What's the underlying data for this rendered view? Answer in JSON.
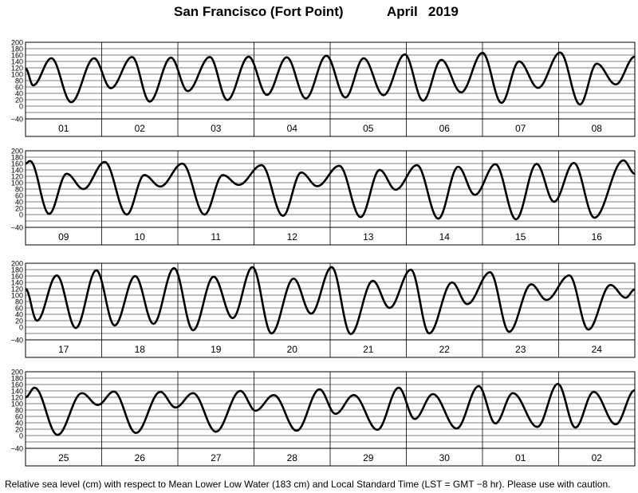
{
  "title": {
    "station": "San Francisco (Fort Point)",
    "month": "April",
    "year": "2019"
  },
  "footnote": "Relative sea level (cm) with respect to Mean Lower Low Water (183 cm) and Local Standard Time (LST = GMT −8 hr). Please use with caution.",
  "chart_data": [
    {
      "type": "line",
      "ylim": [
        -40,
        200
      ],
      "yticks": [
        "200",
        "180",
        "160",
        "140",
        "120",
        "100",
        "80",
        "60",
        "40",
        "20",
        "0",
        "−40"
      ],
      "day_labels": [
        "01",
        "02",
        "03",
        "04",
        "05",
        "06",
        "07",
        "08"
      ],
      "series": [
        {
          "values": [
            {
              "x": 0.0,
              "y": 118
            },
            {
              "x": 0.1,
              "y": 65
            },
            {
              "x": 0.34,
              "y": 150
            },
            {
              "x": 0.6,
              "y": 12
            },
            {
              "x": 0.9,
              "y": 150
            },
            {
              "x": 1.12,
              "y": 56
            },
            {
              "x": 1.4,
              "y": 154
            },
            {
              "x": 1.63,
              "y": 14
            },
            {
              "x": 1.91,
              "y": 152
            },
            {
              "x": 2.13,
              "y": 47
            },
            {
              "x": 2.42,
              "y": 154
            },
            {
              "x": 2.65,
              "y": 19
            },
            {
              "x": 2.93,
              "y": 155
            },
            {
              "x": 3.17,
              "y": 35
            },
            {
              "x": 3.43,
              "y": 153
            },
            {
              "x": 3.68,
              "y": 24
            },
            {
              "x": 3.95,
              "y": 158
            },
            {
              "x": 4.2,
              "y": 27
            },
            {
              "x": 4.44,
              "y": 150
            },
            {
              "x": 4.7,
              "y": 34
            },
            {
              "x": 4.98,
              "y": 162
            },
            {
              "x": 5.22,
              "y": 17
            },
            {
              "x": 5.46,
              "y": 145
            },
            {
              "x": 5.72,
              "y": 43
            },
            {
              "x": 6.0,
              "y": 167
            },
            {
              "x": 6.25,
              "y": 10
            },
            {
              "x": 6.48,
              "y": 140
            },
            {
              "x": 6.73,
              "y": 57
            },
            {
              "x": 7.02,
              "y": 168
            },
            {
              "x": 7.28,
              "y": 5
            },
            {
              "x": 7.5,
              "y": 133
            },
            {
              "x": 7.75,
              "y": 68
            },
            {
              "x": 8.0,
              "y": 155
            }
          ]
        }
      ]
    },
    {
      "type": "line",
      "ylim": [
        -40,
        200
      ],
      "yticks": [
        "200",
        "180",
        "160",
        "140",
        "120",
        "100",
        "80",
        "60",
        "40",
        "20",
        "0",
        "−40"
      ],
      "day_labels": [
        "09",
        "10",
        "11",
        "12",
        "13",
        "14",
        "15",
        "16"
      ],
      "series": [
        {
          "values": [
            {
              "x": 0.0,
              "y": 160
            },
            {
              "x": 0.06,
              "y": 168
            },
            {
              "x": 0.31,
              "y": 2
            },
            {
              "x": 0.54,
              "y": 128
            },
            {
              "x": 0.76,
              "y": 80
            },
            {
              "x": 1.04,
              "y": 165
            },
            {
              "x": 1.33,
              "y": 0
            },
            {
              "x": 1.56,
              "y": 124
            },
            {
              "x": 1.77,
              "y": 88
            },
            {
              "x": 2.06,
              "y": 160
            },
            {
              "x": 2.35,
              "y": 0
            },
            {
              "x": 2.59,
              "y": 124
            },
            {
              "x": 2.8,
              "y": 93
            },
            {
              "x": 3.1,
              "y": 155
            },
            {
              "x": 3.38,
              "y": -4
            },
            {
              "x": 3.62,
              "y": 132
            },
            {
              "x": 3.83,
              "y": 89
            },
            {
              "x": 4.12,
              "y": 153
            },
            {
              "x": 4.4,
              "y": -8
            },
            {
              "x": 4.65,
              "y": 140
            },
            {
              "x": 4.86,
              "y": 78
            },
            {
              "x": 5.14,
              "y": 155
            },
            {
              "x": 5.42,
              "y": -13
            },
            {
              "x": 5.68,
              "y": 150
            },
            {
              "x": 5.9,
              "y": 62
            },
            {
              "x": 6.17,
              "y": 158
            },
            {
              "x": 6.44,
              "y": -15
            },
            {
              "x": 6.71,
              "y": 159
            },
            {
              "x": 6.94,
              "y": 40
            },
            {
              "x": 7.2,
              "y": 162
            },
            {
              "x": 7.47,
              "y": -10
            },
            {
              "x": 7.85,
              "y": 170
            },
            {
              "x": 8.0,
              "y": 128
            }
          ]
        }
      ]
    },
    {
      "type": "line",
      "ylim": [
        -40,
        200
      ],
      "yticks": [
        "200",
        "180",
        "160",
        "140",
        "120",
        "100",
        "80",
        "60",
        "40",
        "20",
        "0",
        "−40"
      ],
      "day_labels": [
        "17",
        "18",
        "19",
        "20",
        "21",
        "22",
        "23",
        "24"
      ],
      "series": [
        {
          "values": [
            {
              "x": 0.0,
              "y": 120
            },
            {
              "x": 0.15,
              "y": 20
            },
            {
              "x": 0.41,
              "y": 162
            },
            {
              "x": 0.66,
              "y": -3
            },
            {
              "x": 0.93,
              "y": 178
            },
            {
              "x": 1.17,
              "y": 5
            },
            {
              "x": 1.44,
              "y": 160
            },
            {
              "x": 1.68,
              "y": 10
            },
            {
              "x": 1.95,
              "y": 185
            },
            {
              "x": 2.2,
              "y": -10
            },
            {
              "x": 2.47,
              "y": 158
            },
            {
              "x": 2.72,
              "y": 28
            },
            {
              "x": 2.98,
              "y": 188
            },
            {
              "x": 3.23,
              "y": -20
            },
            {
              "x": 3.52,
              "y": 152
            },
            {
              "x": 3.75,
              "y": 42
            },
            {
              "x": 4.02,
              "y": 188
            },
            {
              "x": 4.27,
              "y": -22
            },
            {
              "x": 4.56,
              "y": 145
            },
            {
              "x": 4.78,
              "y": 60
            },
            {
              "x": 5.06,
              "y": 180
            },
            {
              "x": 5.3,
              "y": -20
            },
            {
              "x": 5.6,
              "y": 140
            },
            {
              "x": 5.8,
              "y": 72
            },
            {
              "x": 6.1,
              "y": 172
            },
            {
              "x": 6.35,
              "y": -15
            },
            {
              "x": 6.64,
              "y": 134
            },
            {
              "x": 6.84,
              "y": 85
            },
            {
              "x": 7.14,
              "y": 162
            },
            {
              "x": 7.39,
              "y": -8
            },
            {
              "x": 7.68,
              "y": 132
            },
            {
              "x": 7.88,
              "y": 92
            },
            {
              "x": 8.0,
              "y": 118
            }
          ]
        }
      ]
    },
    {
      "type": "line",
      "ylim": [
        -40,
        200
      ],
      "yticks": [
        "200",
        "180",
        "160",
        "140",
        "120",
        "100",
        "80",
        "60",
        "40",
        "20",
        "0",
        "−40"
      ],
      "day_labels": [
        "25",
        "26",
        "27",
        "28",
        "29",
        "30",
        "01",
        "02"
      ],
      "series": [
        {
          "values": [
            {
              "x": 0.0,
              "y": 120
            },
            {
              "x": 0.12,
              "y": 150
            },
            {
              "x": 0.42,
              "y": 2
            },
            {
              "x": 0.74,
              "y": 133
            },
            {
              "x": 0.95,
              "y": 96
            },
            {
              "x": 1.16,
              "y": 138
            },
            {
              "x": 1.45,
              "y": 8
            },
            {
              "x": 1.77,
              "y": 137
            },
            {
              "x": 1.97,
              "y": 88
            },
            {
              "x": 2.2,
              "y": 133
            },
            {
              "x": 2.5,
              "y": 12
            },
            {
              "x": 2.82,
              "y": 140
            },
            {
              "x": 3.02,
              "y": 78
            },
            {
              "x": 3.26,
              "y": 127
            },
            {
              "x": 3.56,
              "y": 15
            },
            {
              "x": 3.86,
              "y": 145
            },
            {
              "x": 4.07,
              "y": 68
            },
            {
              "x": 4.31,
              "y": 127
            },
            {
              "x": 4.62,
              "y": 18
            },
            {
              "x": 4.9,
              "y": 150
            },
            {
              "x": 5.11,
              "y": 52
            },
            {
              "x": 5.35,
              "y": 130
            },
            {
              "x": 5.66,
              "y": 22
            },
            {
              "x": 5.95,
              "y": 155
            },
            {
              "x": 6.17,
              "y": 38
            },
            {
              "x": 6.4,
              "y": 133
            },
            {
              "x": 6.72,
              "y": 27
            },
            {
              "x": 6.99,
              "y": 162
            },
            {
              "x": 7.22,
              "y": 25
            },
            {
              "x": 7.46,
              "y": 137
            },
            {
              "x": 7.75,
              "y": 35
            },
            {
              "x": 8.0,
              "y": 142
            }
          ]
        }
      ]
    }
  ]
}
